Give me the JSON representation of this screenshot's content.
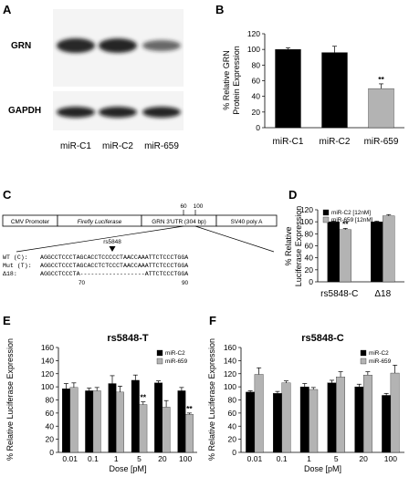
{
  "panels": {
    "a": "A",
    "b": "B",
    "c": "C",
    "d": "D",
    "e": "E",
    "f": "F"
  },
  "blot": {
    "row_labels": [
      "GRN",
      "GAPDH"
    ],
    "lane_labels": [
      "miR-C1",
      "miR-C2",
      "miR-659"
    ],
    "grn_intensity": [
      1.0,
      0.97,
      0.5
    ],
    "gapdh_intensity": [
      1.0,
      1.0,
      1.0
    ]
  },
  "diagram": {
    "segments": [
      "CMV Promoter",
      "Firefly Luciferase",
      "GRN 3'UTR (304 bp)",
      "SV40 poly A"
    ],
    "pos_labels": [
      "60",
      "100"
    ],
    "snp_label": "rs5848",
    "rows": [
      {
        "label": "WT (C):",
        "seq": "AGGCCTCCCTAGCACCTCCCCCTAACCAAATTCTCCCTGGA"
      },
      {
        "label": "Mut (T):",
        "seq": "AGGCCTCCCTAGCACCTCTCCCTAACCAAATTCTCCCTGGA"
      },
      {
        "label": "Δ18:",
        "seq": "AGGCCTCCCTA------------------ATTCTCCCTGGA"
      }
    ],
    "bottom_labels": [
      "70",
      "90"
    ]
  },
  "chart_data": [
    {
      "id": "B",
      "type": "bar",
      "title": "",
      "ylabel": "% Relative GRN Protein Expression",
      "categories": [
        "miR-C1",
        "miR-C2",
        "miR-659"
      ],
      "series": [
        {
          "values": [
            100,
            96,
            50
          ],
          "errors": [
            2,
            8,
            6
          ],
          "colors": [
            "#000000",
            "#000000",
            "#b3b3b3"
          ]
        }
      ],
      "ylim": [
        0,
        120
      ],
      "yticks": [
        0,
        20,
        40,
        60,
        80,
        100,
        120
      ],
      "annotations": [
        {
          "category": "miR-659",
          "text": "**"
        }
      ]
    },
    {
      "id": "D",
      "type": "bar",
      "title": "",
      "ylabel": "% Relative Luciferase Expression",
      "categories": [
        "rs5848-C",
        "Δ18"
      ],
      "series": [
        {
          "name": "miR-C2 [12nM]",
          "color": "#000000",
          "values": [
            100,
            100
          ],
          "errors": [
            1,
            1
          ]
        },
        {
          "name": "miR-659 [12nM]",
          "color": "#b3b3b3",
          "values": [
            87,
            110
          ],
          "errors": [
            2,
            2
          ]
        }
      ],
      "ylim": [
        0,
        120
      ],
      "yticks": [
        0,
        20,
        40,
        60,
        80,
        100,
        120
      ],
      "legend": "top",
      "annotations": [
        {
          "category": "rs5848-C",
          "series": 1,
          "text": "**"
        }
      ]
    },
    {
      "id": "E",
      "type": "bar",
      "title": "rs5848-T",
      "xlabel": "Dose [pM]",
      "ylabel": "% Relative Luciferase Expression",
      "categories": [
        "0.01",
        "0.1",
        "1",
        "5",
        "20",
        "100"
      ],
      "series": [
        {
          "name": "miR-C2",
          "color": "#000000",
          "values": [
            97,
            94,
            105,
            110,
            106,
            94
          ],
          "errors": [
            8,
            4,
            12,
            8,
            3,
            5
          ]
        },
        {
          "name": "miR-659",
          "color": "#b3b3b3",
          "values": [
            99,
            94,
            92,
            73,
            69,
            58
          ],
          "errors": [
            7,
            5,
            9,
            4,
            10,
            2
          ]
        }
      ],
      "ylim": [
        0,
        160
      ],
      "yticks": [
        0,
        20,
        40,
        60,
        80,
        100,
        120,
        140,
        160
      ],
      "legend": "top-right",
      "annotations": [
        {
          "category": "5",
          "series": 1,
          "text": "**"
        },
        {
          "category": "100",
          "series": 1,
          "text": "**"
        }
      ]
    },
    {
      "id": "F",
      "type": "bar",
      "title": "rs5848-C",
      "xlabel": "Dose [pM]",
      "ylabel": "% Relative Luciferase Expression",
      "categories": [
        "0.01",
        "0.1",
        "1",
        "5",
        "20",
        "100"
      ],
      "series": [
        {
          "name": "miR-C2",
          "color": "#000000",
          "values": [
            92,
            90,
            100,
            106,
            100,
            87
          ],
          "errors": [
            2,
            3,
            5,
            4,
            4,
            3
          ]
        },
        {
          "name": "miR-659",
          "color": "#b3b3b3",
          "values": [
            119,
            106,
            96,
            115,
            118,
            121
          ],
          "errors": [
            10,
            3,
            3,
            8,
            5,
            12
          ]
        }
      ],
      "ylim": [
        0,
        160
      ],
      "yticks": [
        0,
        20,
        40,
        60,
        80,
        100,
        120,
        140,
        160
      ],
      "legend": "top-right",
      "annotations": []
    }
  ]
}
